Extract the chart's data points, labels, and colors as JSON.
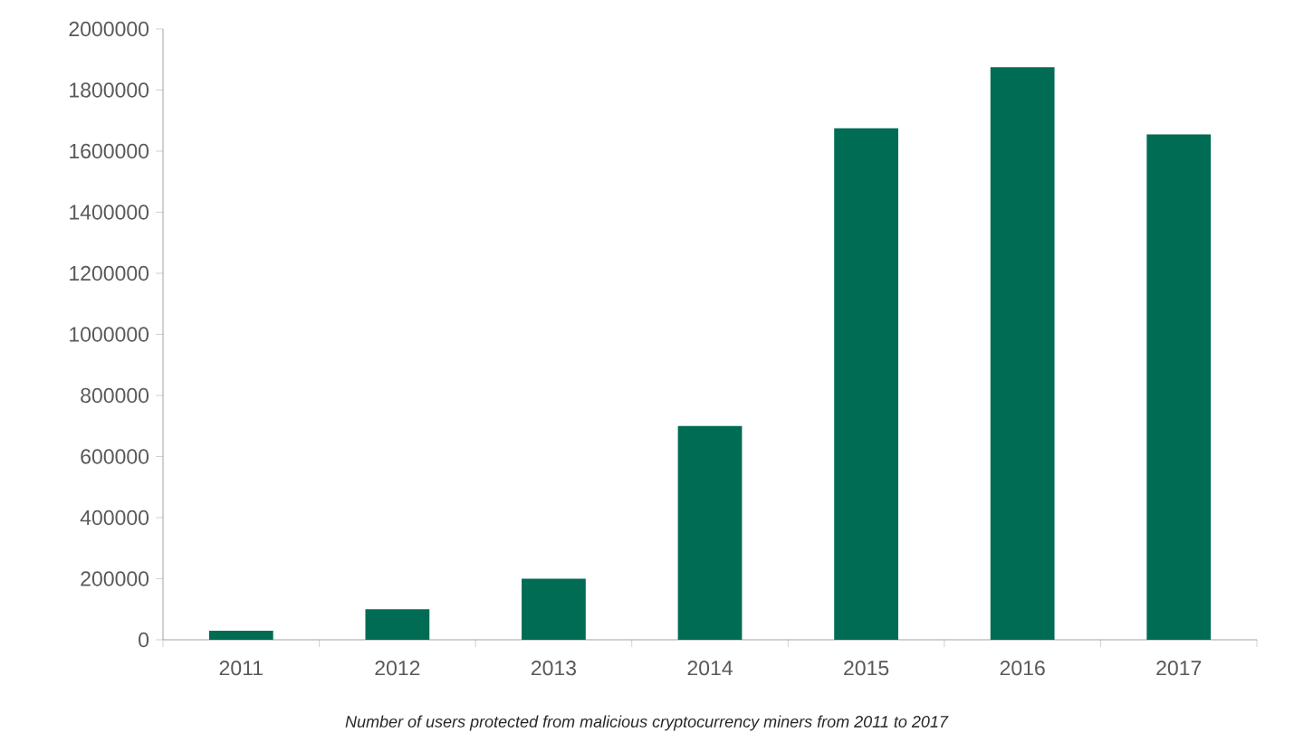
{
  "chart_data": {
    "type": "bar",
    "categories": [
      "2011",
      "2012",
      "2013",
      "2014",
      "2015",
      "2016",
      "2017"
    ],
    "values": [
      30000,
      100000,
      200000,
      700000,
      1675000,
      1875000,
      1655000
    ],
    "color": "#006c54",
    "ylim": [
      0,
      2000000
    ],
    "yticks": [
      0,
      200000,
      400000,
      600000,
      800000,
      1000000,
      1200000,
      1400000,
      1600000,
      1800000,
      2000000
    ],
    "annotations": [
      "Number of users protected from malicious cryptocurrency miners from 2011 to 2017"
    ]
  }
}
